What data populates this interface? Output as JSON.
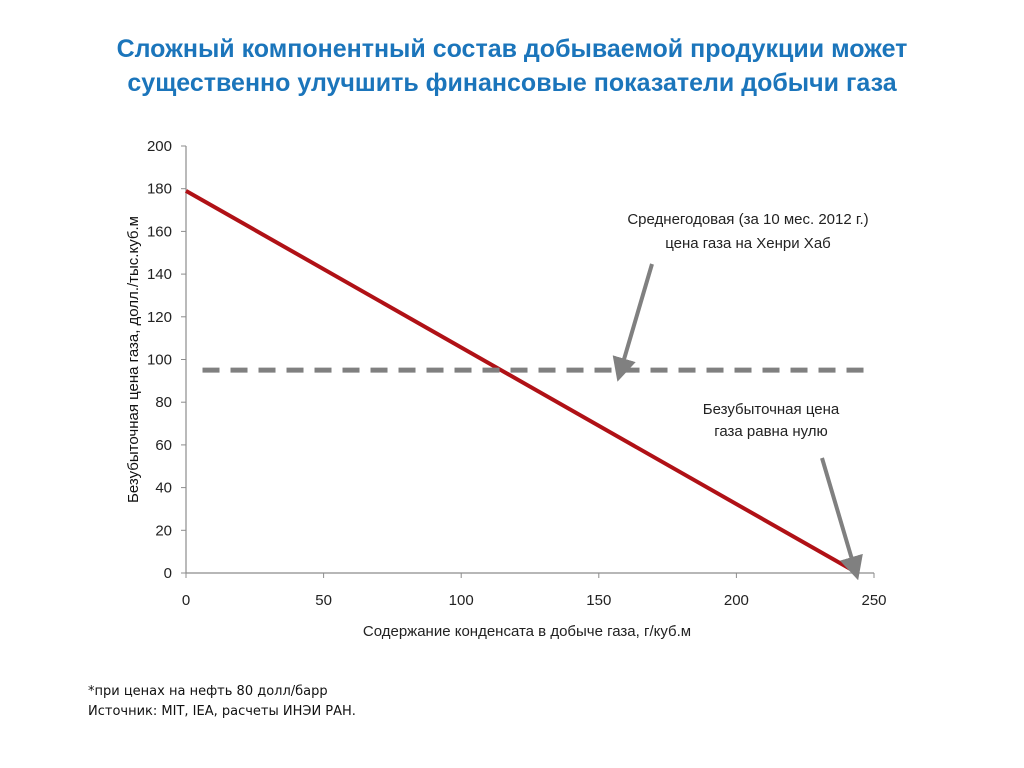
{
  "slide": {
    "title_line1": "Сложный компонентный состав добываемой продукции может",
    "title_line2": "существенно улучшить финансовые показатели добычи газа",
    "footnote_line1": "*при ценах на нефть 80 долл/барр",
    "footnote_line2": "Источник: MIT, IEA, расчеты ИНЭИ РАН."
  },
  "colors": {
    "title": "#1b75bb",
    "breakeven_line": "#b01116",
    "henry_hub_line": "#808080",
    "arrow": "#808080"
  },
  "chart_data": {
    "type": "line",
    "xlabel": "Содержание конденсата в добыче газа, г/куб.м",
    "ylabel": "Безубыточная цена газа, долл./тыс.куб.м",
    "xlim": [
      0,
      250
    ],
    "ylim": [
      0,
      200
    ],
    "x_ticks": [
      0,
      50,
      100,
      150,
      200,
      250
    ],
    "y_ticks": [
      0,
      20,
      40,
      60,
      80,
      100,
      120,
      140,
      160,
      180,
      200
    ],
    "grid": false,
    "series": [
      {
        "style": "solid",
        "color": "#b01116",
        "x": [
          0,
          244
        ],
        "y": [
          179,
          0
        ]
      },
      {
        "style": "dashed",
        "color": "#808080",
        "x": [
          6,
          250
        ],
        "y": [
          95,
          95
        ]
      }
    ],
    "annotations": [
      {
        "lines": [
          "Среднегодовая (за 10 мес. 2012 г.)",
          "цена газа на Хенри Хаб"
        ],
        "arrow_to": [
          158,
          95
        ]
      },
      {
        "lines": [
          "Безубыточная цена",
          "газа равна нулю"
        ],
        "arrow_to": [
          243,
          2
        ]
      }
    ]
  }
}
